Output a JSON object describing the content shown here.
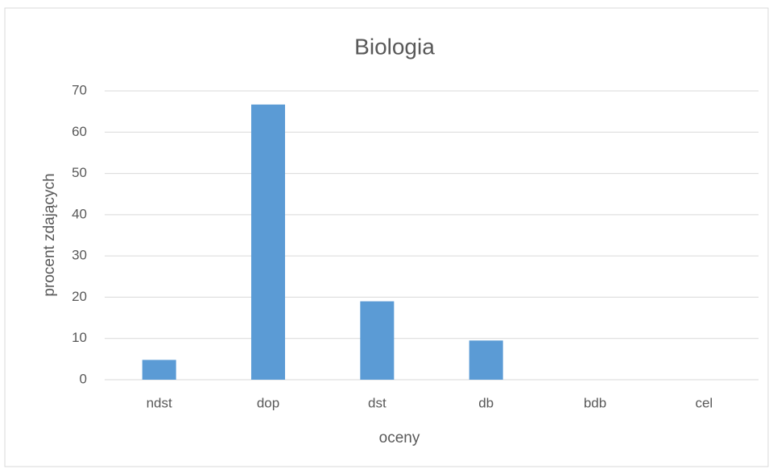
{
  "chart_data": {
    "type": "bar",
    "title": "Biologia",
    "x_label": "oceny",
    "y_label": "procent zdających",
    "categories": [
      "ndst",
      "dop",
      "dst",
      "db",
      "bdb",
      "cel"
    ],
    "values": [
      4.8,
      66.7,
      19,
      9.5,
      0,
      0
    ],
    "color": "#5b9bd5",
    "ylim": [
      0,
      70
    ],
    "yticks": [
      0,
      10,
      20,
      30,
      40,
      50,
      60,
      70
    ],
    "grid": true
  }
}
